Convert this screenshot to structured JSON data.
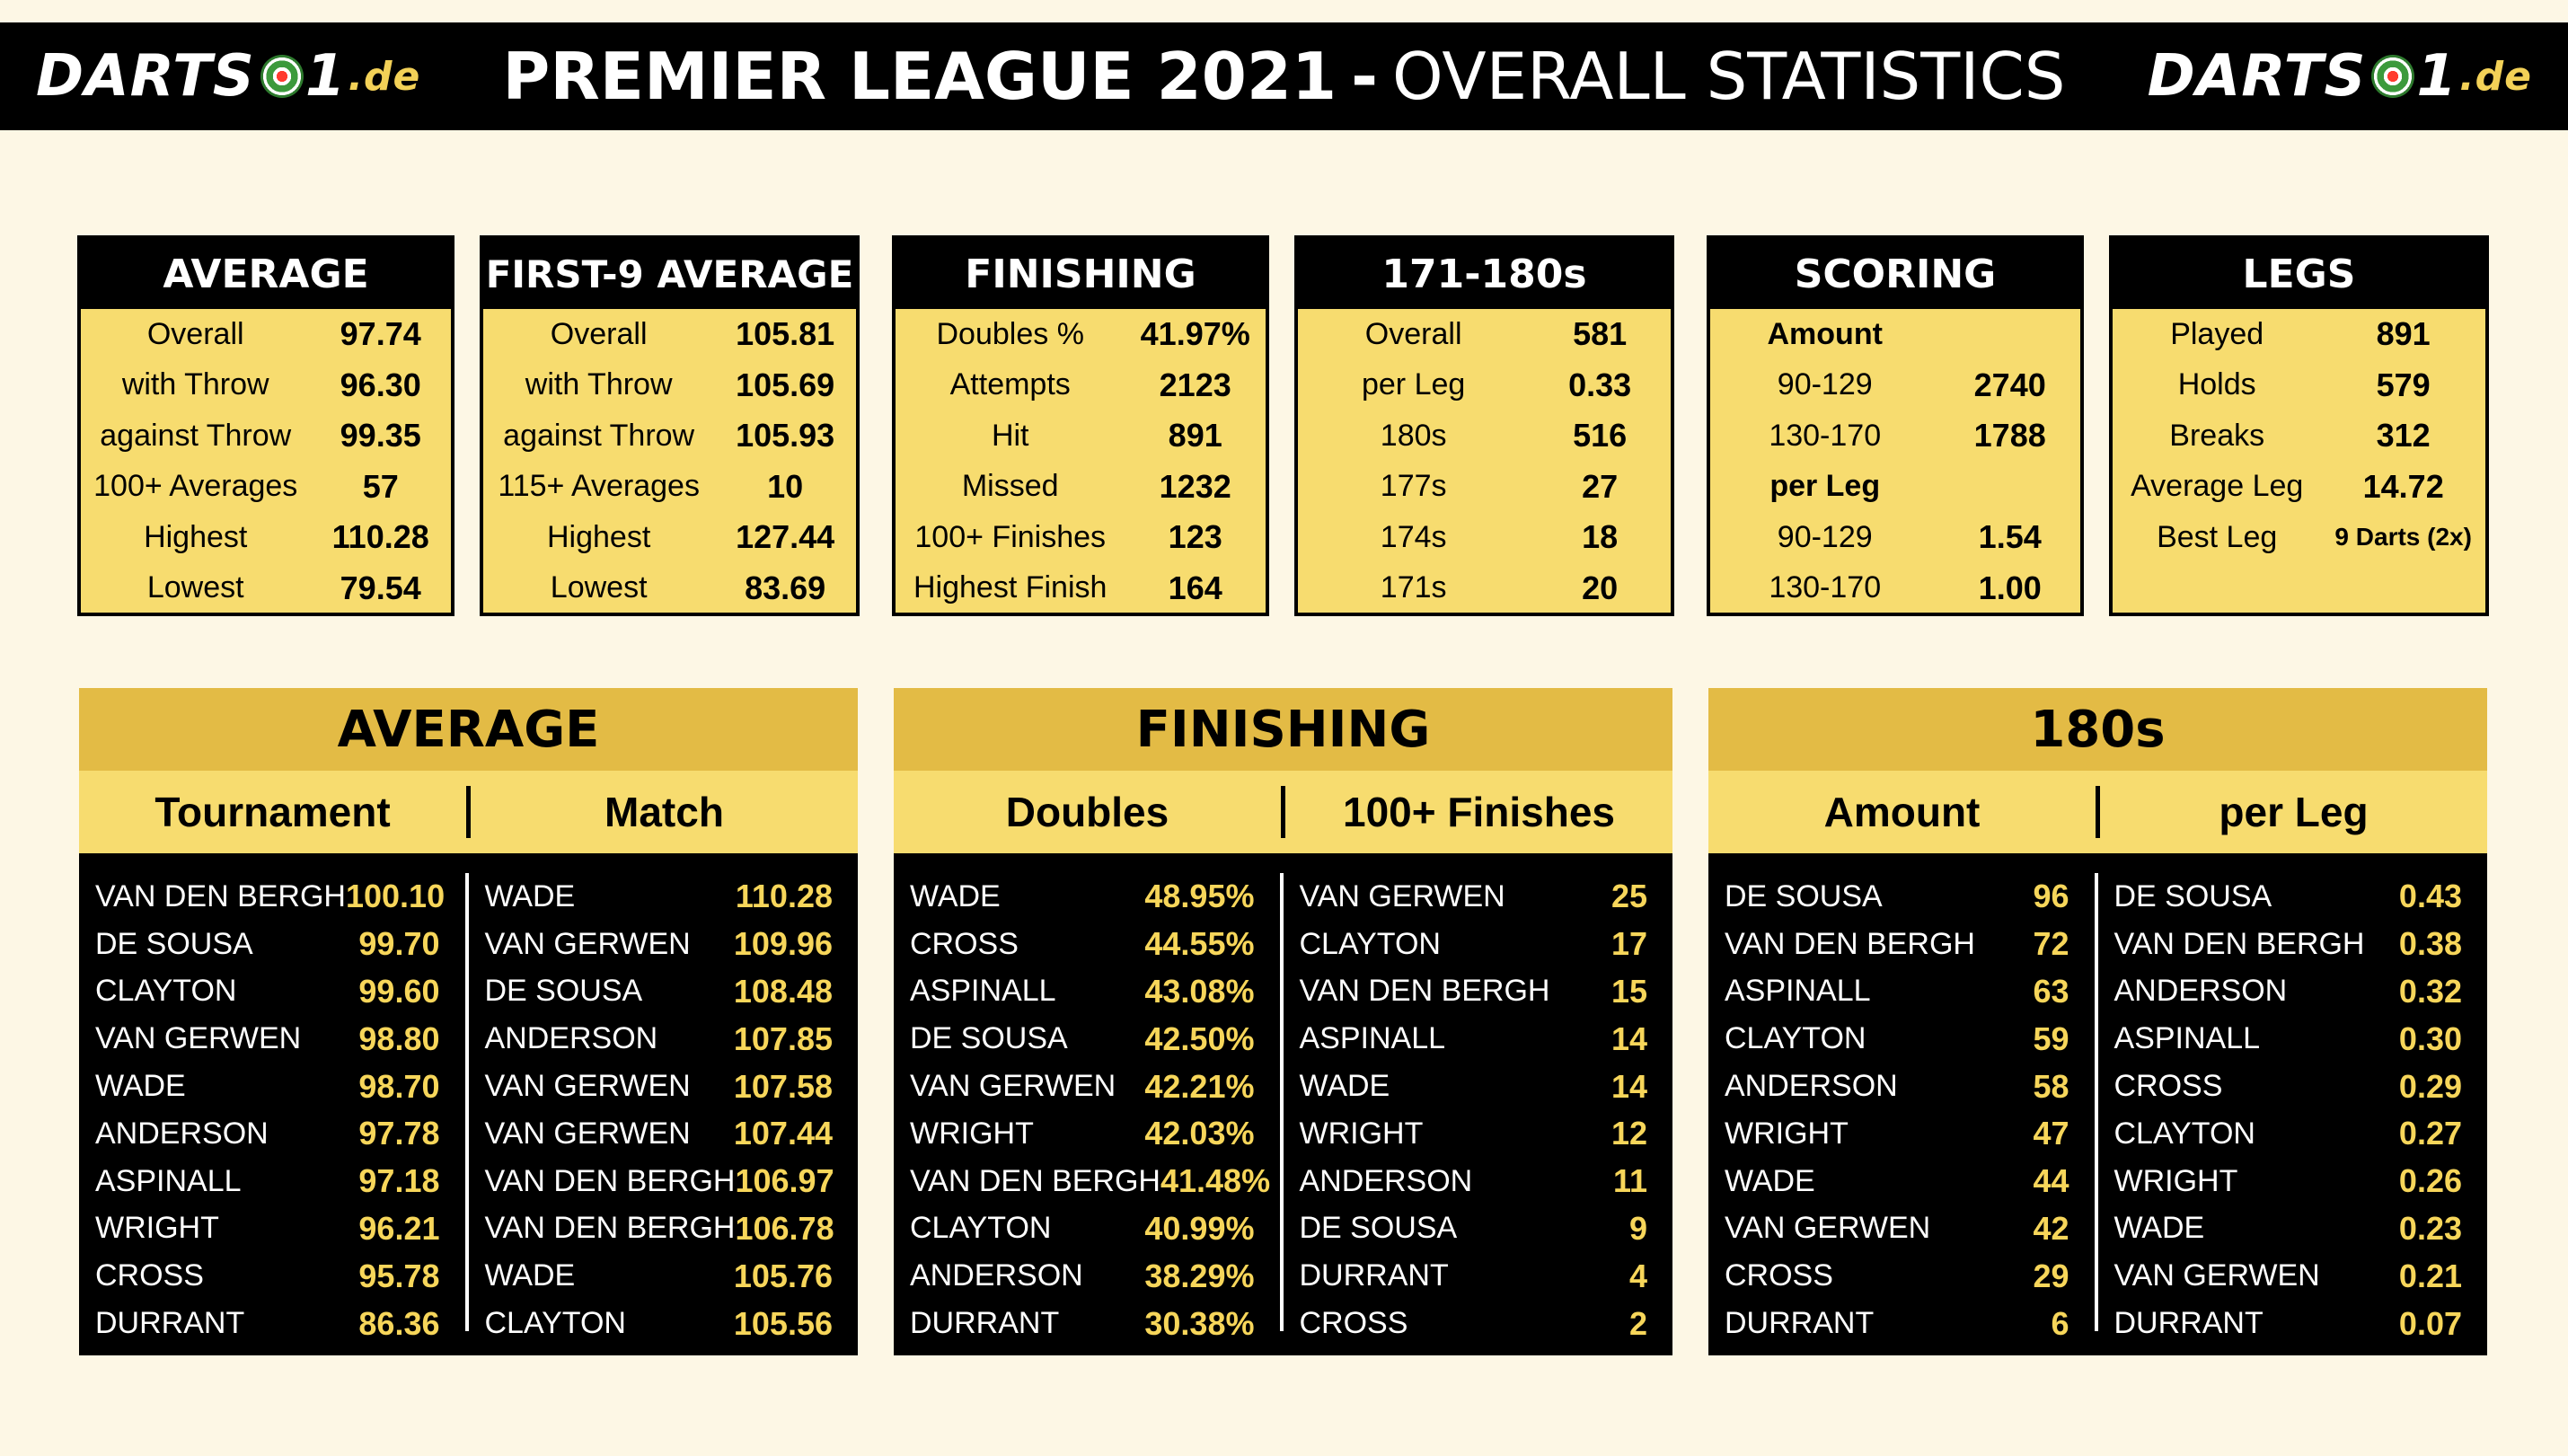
{
  "header": {
    "logo_text": "DARTS",
    "logo_one": "1",
    "logo_domain": ".de",
    "title_bold": "PREMIER LEAGUE 2021",
    "title_separator": "-",
    "title_light": "OVERALL STATISTICS"
  },
  "stat_boxes": [
    {
      "title": "AVERAGE",
      "rows": [
        {
          "label": "Overall",
          "value": "97.74"
        },
        {
          "label": "with Throw",
          "value": "96.30"
        },
        {
          "label": "against Throw",
          "value": "99.35"
        },
        {
          "label": "100+ Averages",
          "value": "57"
        },
        {
          "label": "Highest",
          "value": "110.28"
        },
        {
          "label": "Lowest",
          "value": "79.54"
        }
      ]
    },
    {
      "title": "FIRST-9 AVERAGE",
      "rows": [
        {
          "label": "Overall",
          "value": "105.81"
        },
        {
          "label": "with Throw",
          "value": "105.69"
        },
        {
          "label": "against Throw",
          "value": "105.93"
        },
        {
          "label": "115+ Averages",
          "value": "10"
        },
        {
          "label": "Highest",
          "value": "127.44"
        },
        {
          "label": "Lowest",
          "value": "83.69"
        }
      ]
    },
    {
      "title": "FINISHING",
      "rows": [
        {
          "label": "Doubles %",
          "value": "41.97%"
        },
        {
          "label": "Attempts",
          "value": "2123"
        },
        {
          "label": "Hit",
          "value": "891"
        },
        {
          "label": "Missed",
          "value": "1232"
        },
        {
          "label": "100+ Finishes",
          "value": "123"
        },
        {
          "label": "Highest Finish",
          "value": "164"
        }
      ]
    },
    {
      "title": "171-180s",
      "rows": [
        {
          "label": "Overall",
          "value": "581"
        },
        {
          "label": "per Leg",
          "value": "0.33"
        },
        {
          "label": "180s",
          "value": "516"
        },
        {
          "label": "177s",
          "value": "27"
        },
        {
          "label": "174s",
          "value": "18"
        },
        {
          "label": "171s",
          "value": "20"
        }
      ]
    },
    {
      "title": "SCORING",
      "rows": [
        {
          "label": "Amount",
          "value": ""
        },
        {
          "label": "90-129",
          "value": "2740"
        },
        {
          "label": "130-170",
          "value": "1788"
        },
        {
          "label": "per Leg",
          "value": ""
        },
        {
          "label": "90-129",
          "value": "1.54"
        },
        {
          "label": "130-170",
          "value": "1.00"
        }
      ]
    },
    {
      "title": "LEGS",
      "rows": [
        {
          "label": "Played",
          "value": "891"
        },
        {
          "label": "Holds",
          "value": "579"
        },
        {
          "label": "Breaks",
          "value": "312"
        },
        {
          "label": "Average Leg",
          "value": "14.72"
        },
        {
          "label": "Best Leg",
          "value": "9 Darts (2x)"
        }
      ]
    }
  ],
  "panels": [
    {
      "title": "AVERAGE",
      "left": {
        "header": "Tournament",
        "rows": [
          {
            "name": "VAN DEN BERGH",
            "value": "100.10"
          },
          {
            "name": "DE SOUSA",
            "value": "99.70"
          },
          {
            "name": "CLAYTON",
            "value": "99.60"
          },
          {
            "name": "VAN GERWEN",
            "value": "98.80"
          },
          {
            "name": "WADE",
            "value": "98.70"
          },
          {
            "name": "ANDERSON",
            "value": "97.78"
          },
          {
            "name": "ASPINALL",
            "value": "97.18"
          },
          {
            "name": "WRIGHT",
            "value": "96.21"
          },
          {
            "name": "CROSS",
            "value": "95.78"
          },
          {
            "name": "DURRANT",
            "value": "86.36"
          }
        ]
      },
      "right": {
        "header": "Match",
        "rows": [
          {
            "name": "WADE",
            "value": "110.28"
          },
          {
            "name": "VAN GERWEN",
            "value": "109.96"
          },
          {
            "name": "DE SOUSA",
            "value": "108.48"
          },
          {
            "name": "ANDERSON",
            "value": "107.85"
          },
          {
            "name": "VAN GERWEN",
            "value": "107.58"
          },
          {
            "name": "VAN GERWEN",
            "value": "107.44"
          },
          {
            "name": "VAN DEN BERGH",
            "value": "106.97"
          },
          {
            "name": "VAN DEN BERGH",
            "value": "106.78"
          },
          {
            "name": "WADE",
            "value": "105.76"
          },
          {
            "name": "CLAYTON",
            "value": "105.56"
          }
        ]
      }
    },
    {
      "title": "FINISHING",
      "left": {
        "header": "Doubles",
        "rows": [
          {
            "name": "WADE",
            "value": "48.95%"
          },
          {
            "name": "CROSS",
            "value": "44.55%"
          },
          {
            "name": "ASPINALL",
            "value": "43.08%"
          },
          {
            "name": "DE SOUSA",
            "value": "42.50%"
          },
          {
            "name": "VAN GERWEN",
            "value": "42.21%"
          },
          {
            "name": "WRIGHT",
            "value": "42.03%"
          },
          {
            "name": "VAN DEN BERGH",
            "value": "41.48%"
          },
          {
            "name": "CLAYTON",
            "value": "40.99%"
          },
          {
            "name": "ANDERSON",
            "value": "38.29%"
          },
          {
            "name": "DURRANT",
            "value": "30.38%"
          }
        ]
      },
      "right": {
        "header": "100+ Finishes",
        "rows": [
          {
            "name": "VAN GERWEN",
            "value": "25"
          },
          {
            "name": "CLAYTON",
            "value": "17"
          },
          {
            "name": "VAN DEN BERGH",
            "value": "15"
          },
          {
            "name": "ASPINALL",
            "value": "14"
          },
          {
            "name": "WADE",
            "value": "14"
          },
          {
            "name": "WRIGHT",
            "value": "12"
          },
          {
            "name": "ANDERSON",
            "value": "11"
          },
          {
            "name": "DE SOUSA",
            "value": "9"
          },
          {
            "name": "DURRANT",
            "value": "4"
          },
          {
            "name": "CROSS",
            "value": "2"
          }
        ]
      }
    },
    {
      "title": "180s",
      "left": {
        "header": "Amount",
        "rows": [
          {
            "name": "DE SOUSA",
            "value": "96"
          },
          {
            "name": "VAN DEN BERGH",
            "value": "72"
          },
          {
            "name": "ASPINALL",
            "value": "63"
          },
          {
            "name": "CLAYTON",
            "value": "59"
          },
          {
            "name": "ANDERSON",
            "value": "58"
          },
          {
            "name": "WRIGHT",
            "value": "47"
          },
          {
            "name": "WADE",
            "value": "44"
          },
          {
            "name": "VAN GERWEN",
            "value": "42"
          },
          {
            "name": "CROSS",
            "value": "29"
          },
          {
            "name": "DURRANT",
            "value": "6"
          }
        ]
      },
      "right": {
        "header": "per Leg",
        "rows": [
          {
            "name": "DE SOUSA",
            "value": "0.43"
          },
          {
            "name": "VAN DEN BERGH",
            "value": "0.38"
          },
          {
            "name": "ANDERSON",
            "value": "0.32"
          },
          {
            "name": "ASPINALL",
            "value": "0.30"
          },
          {
            "name": "CROSS",
            "value": "0.29"
          },
          {
            "name": "CLAYTON",
            "value": "0.27"
          },
          {
            "name": "WRIGHT",
            "value": "0.26"
          },
          {
            "name": "WADE",
            "value": "0.23"
          },
          {
            "name": "VAN GERWEN",
            "value": "0.21"
          },
          {
            "name": "DURRANT",
            "value": "0.07"
          }
        ]
      }
    }
  ]
}
